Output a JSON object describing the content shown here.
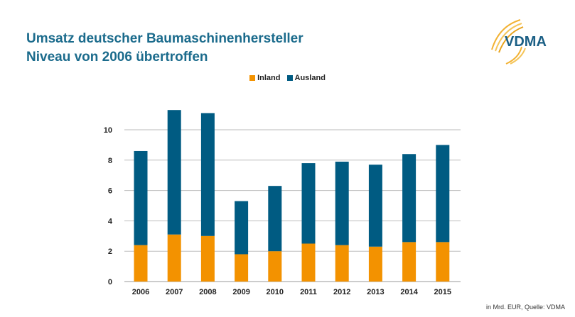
{
  "title_line1": "Umsatz deutscher Baumaschinenhersteller",
  "title_line2": "Niveau von 2006 übertroffen",
  "logo_text": "VDMA",
  "source": "in Mrd. EUR, Quelle: VDMA",
  "chart_data": {
    "type": "bar",
    "stacked": true,
    "categories": [
      "2006",
      "2007",
      "2008",
      "2009",
      "2010",
      "2011",
      "2012",
      "2013",
      "2014",
      "2015"
    ],
    "series": [
      {
        "name": "Inland",
        "color": "#f39200",
        "values": [
          2.4,
          3.1,
          3.0,
          1.8,
          2.0,
          2.5,
          2.4,
          2.3,
          2.6,
          2.6
        ]
      },
      {
        "name": "Ausland",
        "color": "#005b82",
        "values": [
          6.2,
          8.2,
          8.1,
          3.5,
          4.3,
          5.3,
          5.5,
          5.4,
          5.8,
          6.4
        ]
      }
    ],
    "yticks": [
      "0",
      "2",
      "4",
      "6",
      "8",
      "10"
    ],
    "ylim": [
      0,
      12
    ],
    "grid": true,
    "legend_placement": "top"
  }
}
